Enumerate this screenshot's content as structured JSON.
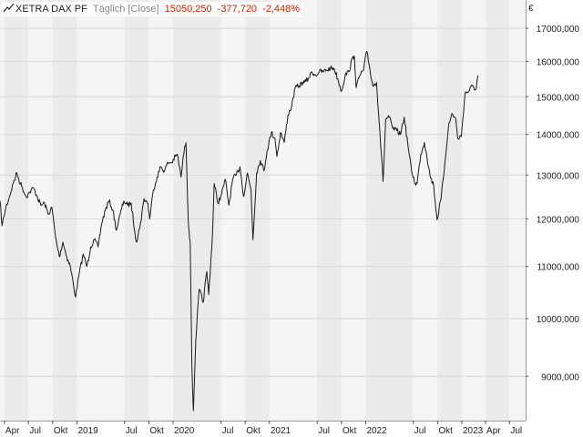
{
  "legend": {
    "name": "XETRA DAX PF",
    "period": "Täglich [Close]",
    "last": "15050,250",
    "change": "-377,720",
    "change_pct": "-2,448%",
    "change_color": "#cc2200"
  },
  "currency": "€",
  "colors": {
    "line": "#1a1a1a",
    "band_light": "#f5f5f5",
    "band_dark": "#ebebeb",
    "grid": "#d8d8d8",
    "axis_text": "#222222"
  },
  "chart_data": {
    "type": "line",
    "title": "",
    "xlabel": "",
    "ylabel": "",
    "y_scale": "log",
    "ylim": [
      8300,
      17900
    ],
    "xlim": [
      "2018-03-15",
      "2023-08-31"
    ],
    "y_ticks": [
      {
        "value": 9000,
        "label": "9000,000"
      },
      {
        "value": 10000,
        "label": "10000,000"
      },
      {
        "value": 11000,
        "label": "11000,000"
      },
      {
        "value": 12000,
        "label": "12000,000"
      },
      {
        "value": 13000,
        "label": "13000,000"
      },
      {
        "value": 14000,
        "label": "14000,000"
      },
      {
        "value": 15000,
        "label": "15000,000"
      },
      {
        "value": 16000,
        "label": "16000,000"
      },
      {
        "value": 17000,
        "label": "17000,000"
      }
    ],
    "x_ticks": [
      {
        "date": "2018-04-01",
        "label": "Apr"
      },
      {
        "date": "2018-07-01",
        "label": "Jul"
      },
      {
        "date": "2018-10-01",
        "label": "Okt"
      },
      {
        "date": "2019-01-01",
        "label": "2019"
      },
      {
        "date": "2019-07-01",
        "label": "Jul"
      },
      {
        "date": "2019-10-01",
        "label": "Okt"
      },
      {
        "date": "2020-01-01",
        "label": "2020"
      },
      {
        "date": "2020-07-01",
        "label": "Jul"
      },
      {
        "date": "2020-10-01",
        "label": "Okt"
      },
      {
        "date": "2021-01-01",
        "label": "2021"
      },
      {
        "date": "2021-07-01",
        "label": "Jul"
      },
      {
        "date": "2021-10-01",
        "label": "Okt"
      },
      {
        "date": "2022-01-01",
        "label": "2022"
      },
      {
        "date": "2022-07-01",
        "label": "Jul"
      },
      {
        "date": "2022-10-01",
        "label": "Okt"
      },
      {
        "date": "2023-01-01",
        "label": "2023"
      },
      {
        "date": "2023-04-01",
        "label": "Apr"
      },
      {
        "date": "2023-07-01",
        "label": "Jul"
      }
    ],
    "series": [
      {
        "points": [
          [
            "2018-03-15",
            12400
          ],
          [
            "2018-03-23",
            11850
          ],
          [
            "2018-04-06",
            12250
          ],
          [
            "2018-04-20",
            12500
          ],
          [
            "2018-05-04",
            12800
          ],
          [
            "2018-05-18",
            13050
          ],
          [
            "2018-05-25",
            12900
          ],
          [
            "2018-06-08",
            12700
          ],
          [
            "2018-06-22",
            12500
          ],
          [
            "2018-07-06",
            12600
          ],
          [
            "2018-07-20",
            12700
          ],
          [
            "2018-08-03",
            12500
          ],
          [
            "2018-08-17",
            12300
          ],
          [
            "2018-08-31",
            12350
          ],
          [
            "2018-09-14",
            12100
          ],
          [
            "2018-09-28",
            12250
          ],
          [
            "2018-10-12",
            11600
          ],
          [
            "2018-10-26",
            11200
          ],
          [
            "2018-11-09",
            11500
          ],
          [
            "2018-11-23",
            11200
          ],
          [
            "2018-12-07",
            11000
          ],
          [
            "2018-12-27",
            10400
          ],
          [
            "2019-01-11",
            10900
          ],
          [
            "2019-01-25",
            11250
          ],
          [
            "2019-02-08",
            11000
          ],
          [
            "2019-02-22",
            11400
          ],
          [
            "2019-03-08",
            11550
          ],
          [
            "2019-03-22",
            11400
          ],
          [
            "2019-04-05",
            11900
          ],
          [
            "2019-04-19",
            12200
          ],
          [
            "2019-05-03",
            12400
          ],
          [
            "2019-05-17",
            12200
          ],
          [
            "2019-05-31",
            11750
          ],
          [
            "2019-06-14",
            12100
          ],
          [
            "2019-06-28",
            12400
          ],
          [
            "2019-07-12",
            12300
          ],
          [
            "2019-07-26",
            12350
          ],
          [
            "2019-08-09",
            11700
          ],
          [
            "2019-08-16",
            11500
          ],
          [
            "2019-08-30",
            11900
          ],
          [
            "2019-09-13",
            12450
          ],
          [
            "2019-09-27",
            12350
          ],
          [
            "2019-10-04",
            12000
          ],
          [
            "2019-10-18",
            12650
          ],
          [
            "2019-11-01",
            12950
          ],
          [
            "2019-11-15",
            13200
          ],
          [
            "2019-11-29",
            13100
          ],
          [
            "2019-12-13",
            13300
          ],
          [
            "2019-12-27",
            13300
          ],
          [
            "2020-01-10",
            13450
          ],
          [
            "2020-01-17",
            13500
          ],
          [
            "2020-01-31",
            12950
          ],
          [
            "2020-02-14",
            13700
          ],
          [
            "2020-02-19",
            13790
          ],
          [
            "2020-02-28",
            11900
          ],
          [
            "2020-03-06",
            11500
          ],
          [
            "2020-03-12",
            9200
          ],
          [
            "2020-03-18",
            8450
          ],
          [
            "2020-03-27",
            9600
          ],
          [
            "2020-04-09",
            10550
          ],
          [
            "2020-04-24",
            10300
          ],
          [
            "2020-05-08",
            10900
          ],
          [
            "2020-05-15",
            10450
          ],
          [
            "2020-05-29",
            11600
          ],
          [
            "2020-06-05",
            12800
          ],
          [
            "2020-06-19",
            12350
          ],
          [
            "2020-07-03",
            12550
          ],
          [
            "2020-07-17",
            12900
          ],
          [
            "2020-07-31",
            12300
          ],
          [
            "2020-08-14",
            12900
          ],
          [
            "2020-08-28",
            13000
          ],
          [
            "2020-09-11",
            13200
          ],
          [
            "2020-09-25",
            12500
          ],
          [
            "2020-10-09",
            13050
          ],
          [
            "2020-10-23",
            12650
          ],
          [
            "2020-10-30",
            11550
          ],
          [
            "2020-11-13",
            13050
          ],
          [
            "2020-11-27",
            13350
          ],
          [
            "2020-12-11",
            13100
          ],
          [
            "2020-12-23",
            13600
          ],
          [
            "2021-01-08",
            14050
          ],
          [
            "2021-01-22",
            13900
          ],
          [
            "2021-01-29",
            13450
          ],
          [
            "2021-02-12",
            14050
          ],
          [
            "2021-02-26",
            13800
          ],
          [
            "2021-03-12",
            14500
          ],
          [
            "2021-03-26",
            14750
          ],
          [
            "2021-04-09",
            15250
          ],
          [
            "2021-04-23",
            15300
          ],
          [
            "2021-05-07",
            15400
          ],
          [
            "2021-05-14",
            15400
          ],
          [
            "2021-05-28",
            15500
          ],
          [
            "2021-06-11",
            15700
          ],
          [
            "2021-06-25",
            15600
          ],
          [
            "2021-07-09",
            15700
          ],
          [
            "2021-07-23",
            15700
          ],
          [
            "2021-08-06",
            15750
          ],
          [
            "2021-08-20",
            15800
          ],
          [
            "2021-09-03",
            15800
          ],
          [
            "2021-09-17",
            15500
          ],
          [
            "2021-10-01",
            15150
          ],
          [
            "2021-10-15",
            15600
          ],
          [
            "2021-10-29",
            15700
          ],
          [
            "2021-11-12",
            16100
          ],
          [
            "2021-11-19",
            16150
          ],
          [
            "2021-11-26",
            15250
          ],
          [
            "2021-12-10",
            15600
          ],
          [
            "2021-12-24",
            15750
          ],
          [
            "2022-01-05",
            16300
          ],
          [
            "2022-01-14",
            15900
          ],
          [
            "2022-01-28",
            15300
          ],
          [
            "2022-02-11",
            15400
          ],
          [
            "2022-02-24",
            14050
          ],
          [
            "2022-03-08",
            12850
          ],
          [
            "2022-03-18",
            14400
          ],
          [
            "2022-03-31",
            14450
          ],
          [
            "2022-04-14",
            14150
          ],
          [
            "2022-04-29",
            14100
          ],
          [
            "2022-05-13",
            14000
          ],
          [
            "2022-05-27",
            14450
          ],
          [
            "2022-06-10",
            13750
          ],
          [
            "2022-06-24",
            13100
          ],
          [
            "2022-07-08",
            12800
          ],
          [
            "2022-07-15",
            12800
          ],
          [
            "2022-07-29",
            13500
          ],
          [
            "2022-08-12",
            13800
          ],
          [
            "2022-08-19",
            13550
          ],
          [
            "2022-09-02",
            13000
          ],
          [
            "2022-09-16",
            12750
          ],
          [
            "2022-09-29",
            11980
          ],
          [
            "2022-10-14",
            12450
          ],
          [
            "2022-10-28",
            13250
          ],
          [
            "2022-11-11",
            14200
          ],
          [
            "2022-11-25",
            14550
          ],
          [
            "2022-12-09",
            14400
          ],
          [
            "2022-12-16",
            13900
          ],
          [
            "2022-12-30",
            13950
          ],
          [
            "2023-01-13",
            15100
          ],
          [
            "2023-01-27",
            15150
          ],
          [
            "2023-02-10",
            15300
          ],
          [
            "2023-02-24",
            15200
          ],
          [
            "2023-03-03",
            15600
          ]
        ]
      }
    ]
  }
}
